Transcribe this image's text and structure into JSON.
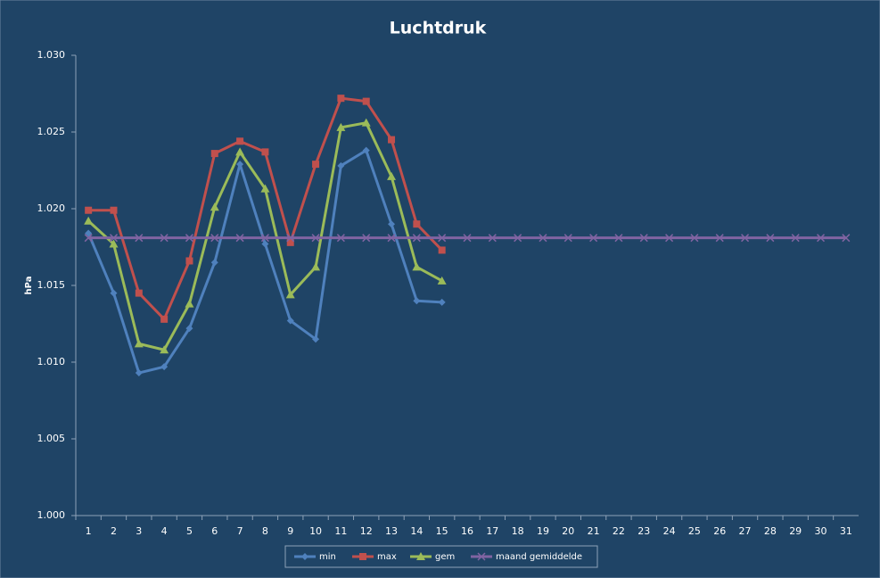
{
  "chart_data": {
    "type": "line",
    "title": "Luchtdruk",
    "y_label": "hPa",
    "categories": [
      "1",
      "2",
      "3",
      "4",
      "5",
      "6",
      "7",
      "8",
      "9",
      "10",
      "11",
      "12",
      "13",
      "14",
      "15",
      "16",
      "17",
      "18",
      "19",
      "20",
      "21",
      "22",
      "23",
      "24",
      "25",
      "26",
      "27",
      "28",
      "29",
      "30",
      "31"
    ],
    "ylim": [
      1000,
      1030
    ],
    "yticks": [
      {
        "value": 1000,
        "label": "1.000"
      },
      {
        "value": 1005,
        "label": "1.005"
      },
      {
        "value": 1010,
        "label": "1.010"
      },
      {
        "value": 1015,
        "label": "1.015"
      },
      {
        "value": 1020,
        "label": "1.020"
      },
      {
        "value": 1025,
        "label": "1.025"
      },
      {
        "value": 1030,
        "label": "1.030"
      }
    ],
    "grid": false,
    "legend": "bottom",
    "series": [
      {
        "name": "min",
        "color": "#4f81bd",
        "marker": "diamond",
        "values": [
          1018.4,
          1014.5,
          1009.3,
          1009.7,
          1012.2,
          1016.5,
          1022.9,
          1017.7,
          1012.7,
          1011.5,
          1022.8,
          1023.8,
          1019.0,
          1014.0,
          1013.9,
          null,
          null,
          null,
          null,
          null,
          null,
          null,
          null,
          null,
          null,
          null,
          null,
          null,
          null,
          null,
          null
        ]
      },
      {
        "name": "max",
        "color": "#c0504d",
        "marker": "square",
        "values": [
          1019.9,
          1019.9,
          1014.5,
          1012.8,
          1016.6,
          1023.6,
          1024.4,
          1023.7,
          1017.8,
          1022.9,
          1027.2,
          1027.0,
          1024.5,
          1019.0,
          1017.3,
          null,
          null,
          null,
          null,
          null,
          null,
          null,
          null,
          null,
          null,
          null,
          null,
          null,
          null,
          null,
          null
        ]
      },
      {
        "name": "gem",
        "color": "#9bbb59",
        "marker": "triangle",
        "values": [
          1019.2,
          1017.7,
          1011.2,
          1010.8,
          1013.8,
          1020.1,
          1023.7,
          1021.3,
          1014.4,
          1016.2,
          1025.3,
          1025.6,
          1022.1,
          1016.2,
          1015.3,
          null,
          null,
          null,
          null,
          null,
          null,
          null,
          null,
          null,
          null,
          null,
          null,
          null,
          null,
          null,
          null
        ]
      },
      {
        "name": "maand gemiddelde",
        "color": "#8064a2",
        "marker": "x",
        "values": [
          1018.1,
          1018.1,
          1018.1,
          1018.1,
          1018.1,
          1018.1,
          1018.1,
          1018.1,
          1018.1,
          1018.1,
          1018.1,
          1018.1,
          1018.1,
          1018.1,
          1018.1,
          1018.1,
          1018.1,
          1018.1,
          1018.1,
          1018.1,
          1018.1,
          1018.1,
          1018.1,
          1018.1,
          1018.1,
          1018.1,
          1018.1,
          1018.1,
          1018.1,
          1018.1,
          1018.1
        ]
      }
    ]
  }
}
